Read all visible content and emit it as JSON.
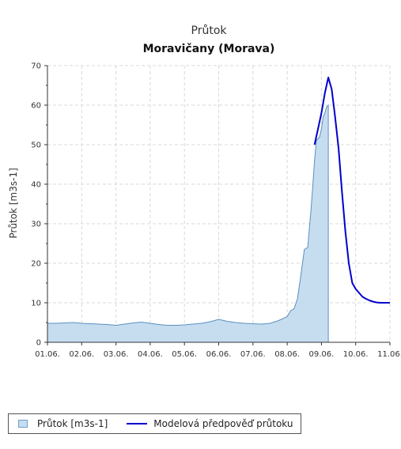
{
  "chart_data": {
    "type": "area",
    "title": "Průtok",
    "subtitle": "Moravičany (Morava)",
    "xlabel": "",
    "ylabel": "Průtok [m3s-1]",
    "ylim": [
      0,
      70
    ],
    "y_ticks": [
      0,
      10,
      20,
      30,
      40,
      50,
      60,
      70
    ],
    "x_ticks": [
      "01.06.",
      "02.06.",
      "03.06.",
      "04.06.",
      "05.06.",
      "06.06.",
      "07.06.",
      "08.06.",
      "09.06.",
      "10.06.",
      "11.06."
    ],
    "xlim_days": [
      0,
      10
    ],
    "grid": true,
    "legend_position": "bottom",
    "series": [
      {
        "name": "Průtok [m3s-1]",
        "kind": "area",
        "color": "#c6ddf0",
        "stroke": "#5a8fc0",
        "x": [
          0,
          0.25,
          0.5,
          0.75,
          1.0,
          1.25,
          1.5,
          1.75,
          2.0,
          2.25,
          2.5,
          2.75,
          3.0,
          3.25,
          3.5,
          3.75,
          4.0,
          4.25,
          4.5,
          4.75,
          5.0,
          5.25,
          5.5,
          5.75,
          6.0,
          6.25,
          6.5,
          6.75,
          7.0,
          7.1,
          7.2,
          7.3,
          7.4,
          7.5,
          7.6,
          7.65,
          7.7,
          7.75,
          7.8,
          7.85,
          7.9,
          7.95,
          8.0,
          8.05,
          8.1,
          8.15,
          8.2
        ],
        "y": [
          4.8,
          4.8,
          4.9,
          5.0,
          4.8,
          4.7,
          4.6,
          4.5,
          4.3,
          4.6,
          4.9,
          5.1,
          4.8,
          4.5,
          4.3,
          4.3,
          4.4,
          4.6,
          4.8,
          5.2,
          5.8,
          5.3,
          5.0,
          4.8,
          4.7,
          4.6,
          4.8,
          5.5,
          6.5,
          8.0,
          8.5,
          11.0,
          17.0,
          23.5,
          24.0,
          29.0,
          34.0,
          40.0,
          46.0,
          51.0,
          51.5,
          52.0,
          54.0,
          57.0,
          58.0,
          59.5,
          60.0
        ]
      },
      {
        "name": "Modelová předpověď průtoku",
        "kind": "line",
        "color": "#0000cc",
        "x": [
          7.8,
          7.9,
          8.0,
          8.1,
          8.2,
          8.3,
          8.4,
          8.5,
          8.6,
          8.7,
          8.8,
          8.9,
          9.0,
          9.1,
          9.2,
          9.3,
          9.4,
          9.5,
          9.6,
          9.7,
          9.8,
          9.9,
          10.0
        ],
        "y": [
          50.0,
          54.0,
          58.0,
          63.0,
          67.0,
          64.0,
          57.0,
          49.0,
          38.0,
          28.0,
          20.0,
          15.0,
          13.5,
          12.5,
          11.5,
          11.0,
          10.6,
          10.3,
          10.1,
          10.0,
          10.0,
          10.0,
          10.0
        ]
      }
    ]
  }
}
